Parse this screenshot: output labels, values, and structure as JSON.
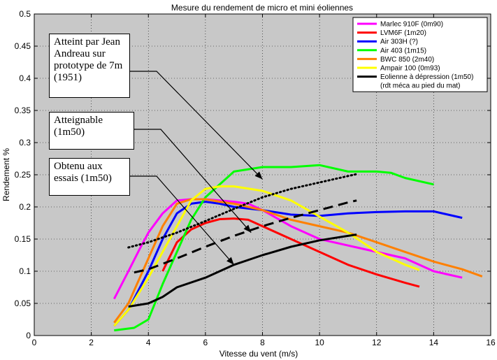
{
  "chart_data": {
    "type": "line",
    "title": "Mesure du rendement de micro et mini éoliennes",
    "xlabel": "Vitesse du vent (m/s)",
    "ylabel": "Rendement %",
    "xlim": [
      0,
      16
    ],
    "ylim": [
      0,
      0.5
    ],
    "xticks": [
      "0",
      "2",
      "4",
      "6",
      "8",
      "10",
      "12",
      "14",
      "16"
    ],
    "yticks": [
      "0",
      "0.05",
      "0.1",
      "0.15",
      "0.2",
      "0.25",
      "0.3",
      "0.35",
      "0.4",
      "0.45",
      "0.5"
    ],
    "grid": true,
    "legend_position": "top-right",
    "legend_note": "(rdt méca au pied du mat)",
    "series": [
      {
        "name": "Marlec 910F (0m90)",
        "color": "#ff00ff",
        "dash": "solid",
        "x": [
          2.8,
          3.3,
          3.7,
          4.0,
          4.5,
          5.0,
          5.5,
          6.0,
          6.5,
          7.0,
          7.5,
          8.0,
          9.0,
          10.0,
          11.0,
          12.0,
          13.0,
          14.0,
          15.0
        ],
        "y": [
          0.057,
          0.1,
          0.135,
          0.16,
          0.19,
          0.21,
          0.212,
          0.212,
          0.21,
          0.208,
          0.205,
          0.195,
          0.17,
          0.15,
          0.14,
          0.13,
          0.12,
          0.1,
          0.09
        ]
      },
      {
        "name": "LVM6F (1m20)",
        "color": "#ff0000",
        "dash": "solid",
        "x": [
          4.5,
          5.0,
          5.5,
          6.0,
          6.5,
          7.0,
          7.5,
          8.0,
          9.0,
          10.0,
          11.0,
          12.0,
          13.0,
          13.5
        ],
        "y": [
          0.1,
          0.145,
          0.165,
          0.175,
          0.181,
          0.182,
          0.18,
          0.17,
          0.15,
          0.13,
          0.11,
          0.095,
          0.082,
          0.076
        ]
      },
      {
        "name": "Air 303H (?)",
        "color": "#0000ff",
        "dash": "solid",
        "x": [
          2.8,
          3.3,
          4.0,
          4.5,
          5.0,
          5.5,
          6.0,
          6.5,
          7.0,
          8.0,
          9.0,
          10.0,
          11.0,
          12.0,
          13.0,
          14.0,
          15.0
        ],
        "y": [
          0.015,
          0.04,
          0.1,
          0.15,
          0.19,
          0.205,
          0.208,
          0.205,
          0.2,
          0.195,
          0.188,
          0.186,
          0.19,
          0.192,
          0.193,
          0.193,
          0.183
        ]
      },
      {
        "name": "Air 403 (1m15)",
        "color": "#00ff00",
        "dash": "solid",
        "x": [
          2.8,
          3.5,
          4.0,
          4.5,
          5.0,
          5.5,
          6.0,
          6.5,
          7.0,
          8.0,
          9.0,
          10.0,
          11.0,
          12.0,
          12.5,
          13.0,
          14.0
        ],
        "y": [
          0.008,
          0.012,
          0.025,
          0.08,
          0.13,
          0.18,
          0.215,
          0.235,
          0.255,
          0.262,
          0.262,
          0.265,
          0.255,
          0.255,
          0.253,
          0.245,
          0.235
        ]
      },
      {
        "name": "BWC 850 (2m40)",
        "color": "#ff8000",
        "dash": "solid",
        "x": [
          2.8,
          3.3,
          4.0,
          4.5,
          5.0,
          5.5,
          6.0,
          6.5,
          7.0,
          8.0,
          9.0,
          10.0,
          11.0,
          12.0,
          13.0,
          14.0,
          15.0,
          15.7
        ],
        "y": [
          0.02,
          0.05,
          0.12,
          0.17,
          0.205,
          0.212,
          0.212,
          0.208,
          0.205,
          0.195,
          0.18,
          0.17,
          0.16,
          0.145,
          0.13,
          0.115,
          0.103,
          0.092
        ]
      },
      {
        "name": "Ampair 100 (0m93)",
        "color": "#ffff00",
        "dash": "solid",
        "x": [
          2.8,
          3.3,
          4.0,
          4.5,
          5.0,
          5.5,
          6.0,
          6.5,
          7.0,
          8.0,
          9.0,
          10.0,
          11.0,
          12.0,
          13.0,
          13.5
        ],
        "y": [
          0.015,
          0.04,
          0.09,
          0.13,
          0.17,
          0.21,
          0.228,
          0.232,
          0.232,
          0.225,
          0.21,
          0.185,
          0.16,
          0.13,
          0.11,
          0.102
        ]
      },
      {
        "name": "Eolienne à dépression (1m50)",
        "color": "#000000",
        "dash": "solid",
        "x": [
          3.3,
          4.0,
          4.5,
          5.0,
          6.0,
          7.0,
          8.0,
          9.0,
          10.0,
          11.0,
          11.3
        ],
        "y": [
          0.045,
          0.05,
          0.06,
          0.075,
          0.09,
          0.11,
          0.125,
          0.138,
          0.148,
          0.155,
          0.157
        ]
      },
      {
        "name": "",
        "color": "#000000",
        "dash": "dotted",
        "x": [
          3.3,
          4.0,
          5.0,
          6.0,
          7.0,
          8.0,
          9.0,
          10.0,
          11.0,
          11.3
        ],
        "y": [
          0.137,
          0.145,
          0.16,
          0.178,
          0.197,
          0.215,
          0.228,
          0.238,
          0.248,
          0.251
        ]
      },
      {
        "name": "",
        "color": "#000000",
        "dash": "dashed",
        "x": [
          3.5,
          4.0,
          5.0,
          6.0,
          7.0,
          8.0,
          9.0,
          10.0,
          11.0,
          11.3
        ],
        "y": [
          0.098,
          0.103,
          0.12,
          0.138,
          0.155,
          0.17,
          0.183,
          0.195,
          0.207,
          0.21
        ]
      }
    ],
    "annotations": [
      {
        "text": "Atteint par Jean Andreau sur prototype de 7m (1951)",
        "target_x": 8.0,
        "target_y": 0.243
      },
      {
        "text": "Atteignable (1m50)",
        "target_x": 7.6,
        "target_y": 0.16
      },
      {
        "text": "Obtenu aux essais (1m50)",
        "target_x": 7.0,
        "target_y": 0.11
      }
    ]
  }
}
